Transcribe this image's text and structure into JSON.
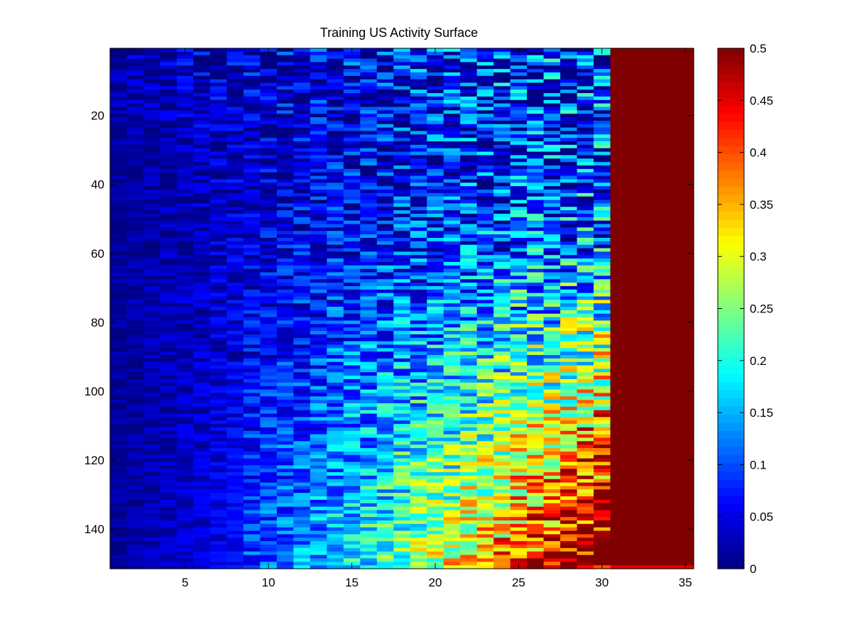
{
  "chart_data": {
    "type": "heatmap",
    "title": "Training US Activity Surface",
    "xlabel": "",
    "ylabel": "",
    "colormap": "jet",
    "x_range": [
      0.5,
      35.5
    ],
    "y_range": [
      0.5,
      151.5
    ],
    "y_direction": "reversed",
    "xticks": [
      5,
      10,
      15,
      20,
      25,
      30,
      35
    ],
    "yticks": [
      20,
      40,
      60,
      80,
      100,
      120,
      140
    ],
    "clim": [
      0,
      0.5
    ],
    "colorbar_ticks": [
      "0",
      "0.05",
      "0.1",
      "0.15",
      "0.2",
      "0.25",
      "0.3",
      "0.35",
      "0.4",
      "0.45",
      "0.5"
    ],
    "columns": 35,
    "rows": 151,
    "saturated_columns_from": 31,
    "saturated_value": 0.5,
    "last_row_value_cols_31_35": 0.45,
    "approx_row_means": [
      {
        "row": 1,
        "values_by_col_group": {
          "1-6": 0.06,
          "7-12": 0.11,
          "13-18": 0.14,
          "19-24": 0.13,
          "25-30": 0.12
        }
      },
      {
        "row": 40,
        "values_by_col_group": {
          "1-6": 0.02,
          "7-12": 0.08,
          "13-18": 0.13,
          "19-24": 0.13,
          "25-30": 0.12
        }
      },
      {
        "row": 80,
        "values_by_col_group": {
          "1-6": 0.01,
          "7-12": 0.04,
          "13-18": 0.15,
          "19-24": 0.17,
          "25-30": 0.18
        }
      },
      {
        "row": 110,
        "values_by_col_group": {
          "1-6": 0.01,
          "7-12": 0.02,
          "13-18": 0.15,
          "19-24": 0.3,
          "25-30": 0.33
        }
      },
      {
        "row": 130,
        "values_by_col_group": {
          "1-6": 0.01,
          "7-12": 0.01,
          "13-18": 0.08,
          "19-24": 0.33,
          "25-30": 0.4
        }
      },
      {
        "row": 151,
        "values_by_col_group": {
          "1-6": 0.01,
          "7-12": 0.01,
          "13-18": 0.04,
          "19-24": 0.25,
          "25-30": 0.4
        }
      }
    ]
  }
}
